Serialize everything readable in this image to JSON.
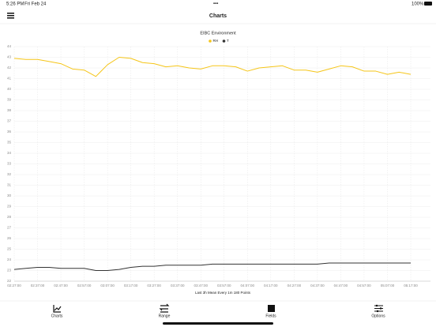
{
  "status_bar": {
    "time": "5:26 PM",
    "date": "Fri Feb 24",
    "battery": "100%"
  },
  "nav": {
    "title": "Charts"
  },
  "chart_data": {
    "type": "line",
    "title": "EIBC Environment",
    "x_label": "Last 3h Mean Every 1m 180 Points",
    "categories": [
      "02:27:00",
      null,
      "02:37:00",
      null,
      "02:47:00",
      null,
      "02:57:00",
      null,
      "03:07:00",
      null,
      "03:17:00",
      null,
      "03:27:00",
      null,
      "03:37:00",
      null,
      "03:47:00",
      null,
      "03:57:00",
      null,
      "04:07:00",
      null,
      "04:17:00",
      null,
      "04:27:00",
      null,
      "04:37:00",
      null,
      "04:47:00",
      null,
      "04:57:00",
      null,
      "05:07:00",
      null,
      "05:17:00"
    ],
    "series": [
      {
        "name": "RH",
        "color": "#f5c518",
        "values": [
          42.9,
          42.8,
          42.8,
          42.6,
          42.4,
          41.9,
          41.8,
          41.2,
          42.3,
          43.0,
          42.9,
          42.5,
          42.4,
          42.1,
          42.2,
          42.0,
          41.9,
          42.2,
          42.2,
          42.1,
          41.7,
          42.0,
          42.1,
          42.2,
          41.8,
          41.8,
          41.6,
          41.9,
          42.2,
          42.1,
          41.7,
          41.7,
          41.4,
          41.6,
          41.4
        ]
      },
      {
        "name": "T",
        "color": "#333333",
        "values": [
          23.1,
          23.2,
          23.3,
          23.3,
          23.2,
          23.2,
          23.2,
          23.0,
          23.0,
          23.1,
          23.3,
          23.4,
          23.4,
          23.5,
          23.5,
          23.5,
          23.5,
          23.6,
          23.6,
          23.6,
          23.6,
          23.6,
          23.6,
          23.6,
          23.6,
          23.6,
          23.6,
          23.7,
          23.7,
          23.7,
          23.7,
          23.7,
          23.7,
          23.7,
          23.7
        ]
      }
    ],
    "ylim": [
      22,
      44
    ],
    "yticks": [
      22,
      23,
      24,
      25,
      26,
      27,
      28,
      29,
      30,
      31,
      32,
      33,
      34,
      35,
      36,
      37,
      38,
      39,
      40,
      41,
      42,
      43,
      44
    ],
    "grid": true
  },
  "tabs": [
    "Charts",
    "Range",
    "Fields",
    "Options"
  ]
}
